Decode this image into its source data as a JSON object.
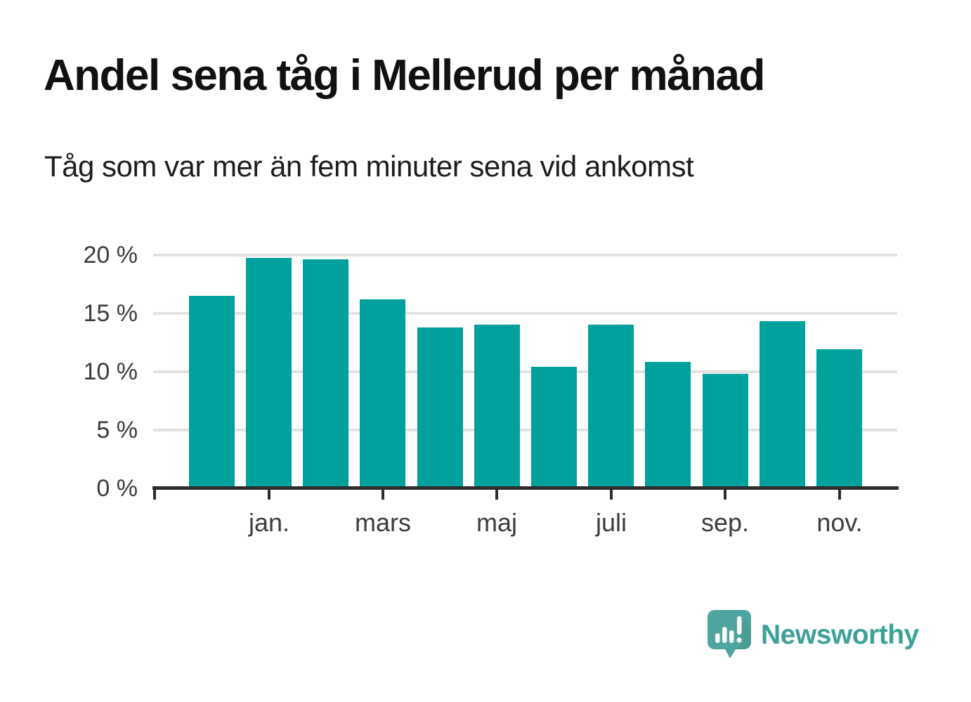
{
  "header": {
    "title": "Andel sena tåg i Mellerud per månad",
    "subtitle": "Tåg som var mer än fem minuter sena vid ankomst"
  },
  "chart_data": {
    "type": "bar",
    "title": "Andel sena tåg i Mellerud per månad",
    "subtitle": "Tåg som var mer än fem minuter sena vid ankomst",
    "unit": "%",
    "values": [
      16.5,
      19.7,
      19.6,
      16.2,
      13.8,
      14.0,
      10.4,
      14.0,
      10.8,
      9.8,
      14.3,
      11.9
    ],
    "x_tick_labels": [
      "jan.",
      "mars",
      "maj",
      "juli",
      "sep.",
      "nov."
    ],
    "labeled_bar_indexes": [
      1,
      3,
      5,
      7,
      9,
      11
    ],
    "y_tick_labels": [
      "20 %",
      "15 %",
      "10 %",
      "5 %",
      "0 %"
    ],
    "y_tick_values": [
      20,
      15,
      10,
      5,
      0
    ],
    "ylim": [
      0,
      20
    ],
    "grid": "horizontal",
    "legend": "none",
    "bar_color": "#00a19c"
  },
  "branding": {
    "wordmark": "Newsworthy",
    "logo_icon": "newsworthy-speech-bubble-chart-icon",
    "wordmark_color": "#3da19a",
    "logo_bubble_color": "#4ea59f",
    "logo_shade_color": "#45988f"
  },
  "colors": {
    "background": "#ffffff",
    "bar": "#00a19c",
    "title_text": "#111111",
    "subtitle_text": "#1d1d1d",
    "axis_text": "#3c3c3c",
    "gridline": "#e2e2e2",
    "axis_line": "#2d2d2d"
  }
}
